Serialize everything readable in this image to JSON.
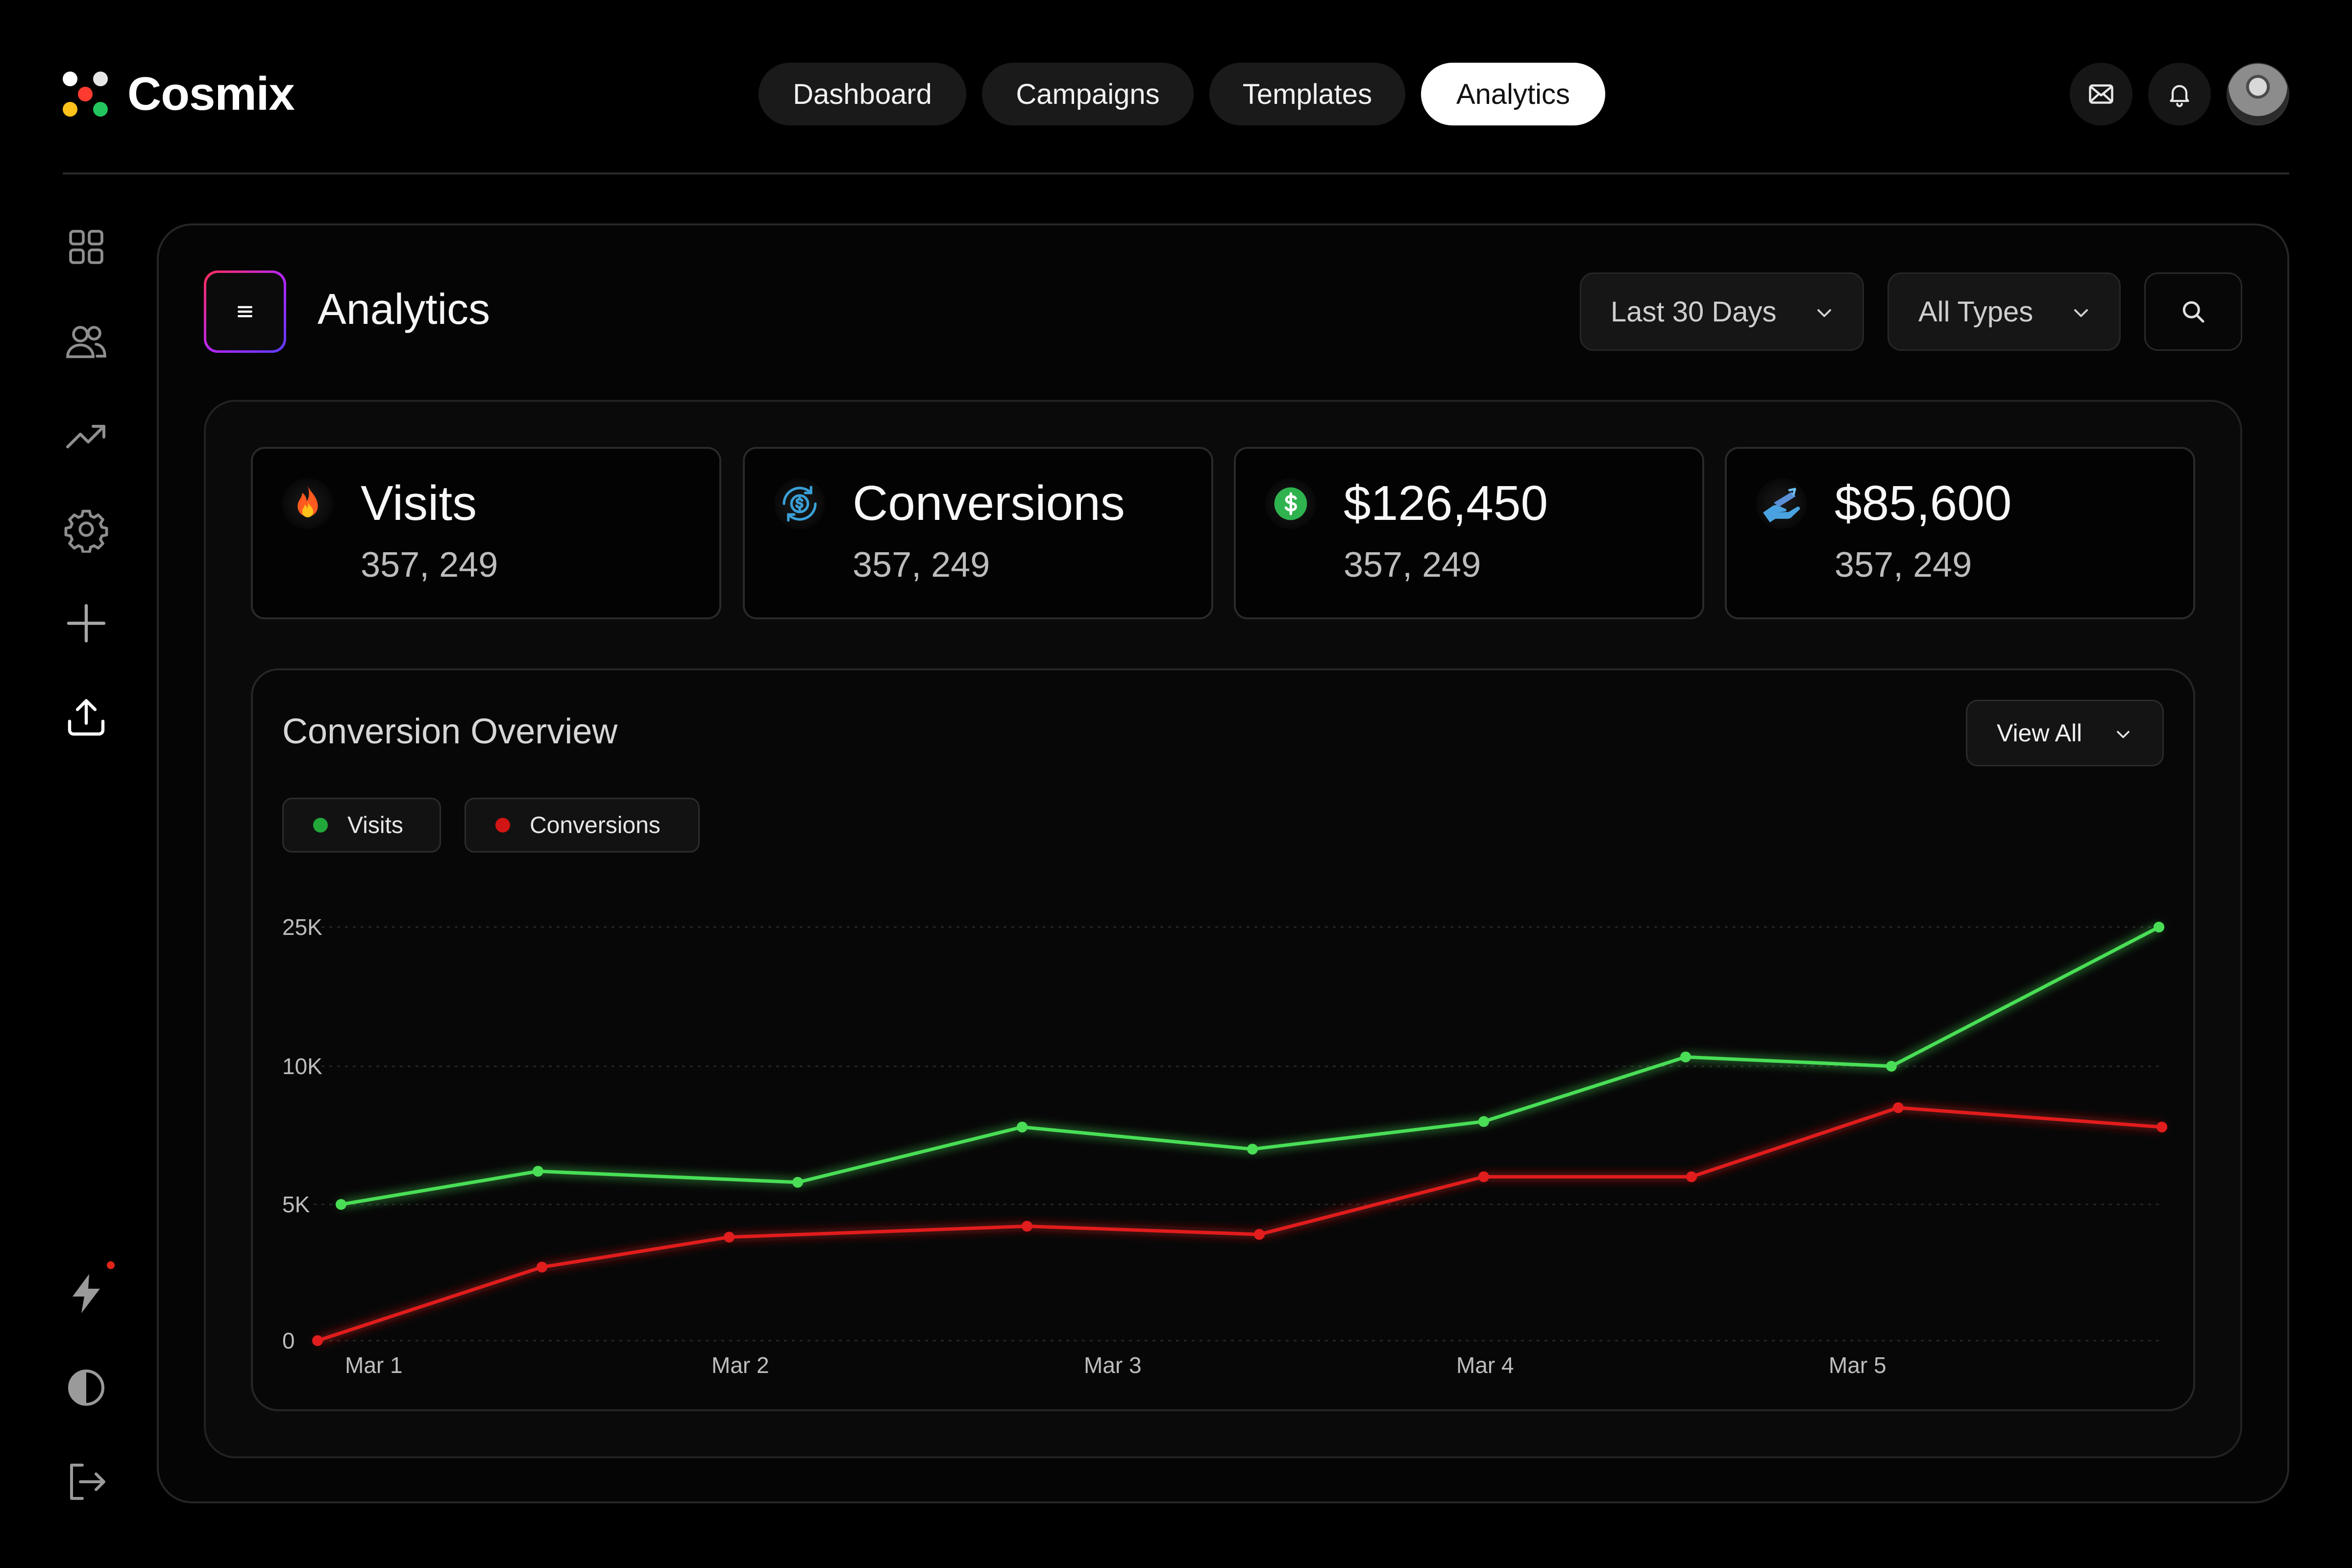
{
  "brand": {
    "name": "Cosmix",
    "logo_colors": [
      "#ffffff",
      "#e8e8e8",
      "#ff3b2f",
      "#ffc21a",
      "#22c55e"
    ]
  },
  "nav": {
    "tabs": [
      {
        "label": "Dashboard",
        "active": false
      },
      {
        "label": "Campaigns",
        "active": false
      },
      {
        "label": "Templates",
        "active": false
      },
      {
        "label": "Analytics",
        "active": true
      }
    ]
  },
  "header_icons": [
    "mail-icon",
    "bell-icon"
  ],
  "sidebar": {
    "top_items": [
      "grid-icon",
      "users-icon",
      "trending-up-icon",
      "gear-icon",
      "plus-icon",
      "upload-icon"
    ],
    "bottom_items": [
      "bolt-icon",
      "contrast-icon",
      "logout-icon"
    ],
    "upload_active": true,
    "bolt_has_notification": true
  },
  "page": {
    "title": "Analytics",
    "filters": {
      "date_range": "Last 30 Days",
      "type": "All Types"
    }
  },
  "stats": [
    {
      "icon": "fire-icon",
      "title": "Visits",
      "value": "357, 249"
    },
    {
      "icon": "sync-dollar-icon",
      "title": "Conversions",
      "value": "357, 249"
    },
    {
      "icon": "dollar-circle-icon",
      "title": "$126,450",
      "value": "357, 249"
    },
    {
      "icon": "hand-money-icon",
      "title": "$85,600",
      "value": "357, 249"
    }
  ],
  "chart_card": {
    "title": "Conversion Overview",
    "view_all_label": "View All"
  },
  "colors": {
    "visits": "#4ade57",
    "conversions": "#e11d1d",
    "accent_active": "#ffffff"
  },
  "chart_data": {
    "type": "line",
    "x_ticks": [
      "Mar 1",
      "Mar 2",
      "Mar 3",
      "Mar 4",
      "Mar 5"
    ],
    "y_ticks": [
      "0",
      "5K",
      "10K",
      "25K"
    ],
    "grid": true,
    "legend_placement": "top-left",
    "series": [
      {
        "name": "Visits",
        "color": "#4ade57",
        "points": [
          {
            "x": "Mar 1",
            "y": 5000
          },
          {
            "x": "Mar 1–2",
            "y": 6200
          },
          {
            "x": "Mar 2",
            "y": 5800
          },
          {
            "x": "Mar 2–3",
            "y": 7800
          },
          {
            "x": "Mar 3",
            "y": 7000
          },
          {
            "x": "Mar 4",
            "y": 8000
          },
          {
            "x": "Mar 4–5",
            "y": 11000
          },
          {
            "x": "Mar 5",
            "y": 10000
          },
          {
            "x": "after Mar 5",
            "y": 25000
          }
        ]
      },
      {
        "name": "Conversions",
        "color": "#e11d1d",
        "points": [
          {
            "x": "Mar 1",
            "y": 0
          },
          {
            "x": "Mar 1–2",
            "y": 2700
          },
          {
            "x": "Mar 2",
            "y": 3800
          },
          {
            "x": "Mar 2–3",
            "y": 4200
          },
          {
            "x": "Mar 3",
            "y": 3900
          },
          {
            "x": "Mar 4",
            "y": 6000
          },
          {
            "x": "Mar 4–5",
            "y": 6000
          },
          {
            "x": "Mar 5",
            "y": 8500
          },
          {
            "x": "after Mar 5",
            "y": 7800
          }
        ]
      }
    ]
  }
}
